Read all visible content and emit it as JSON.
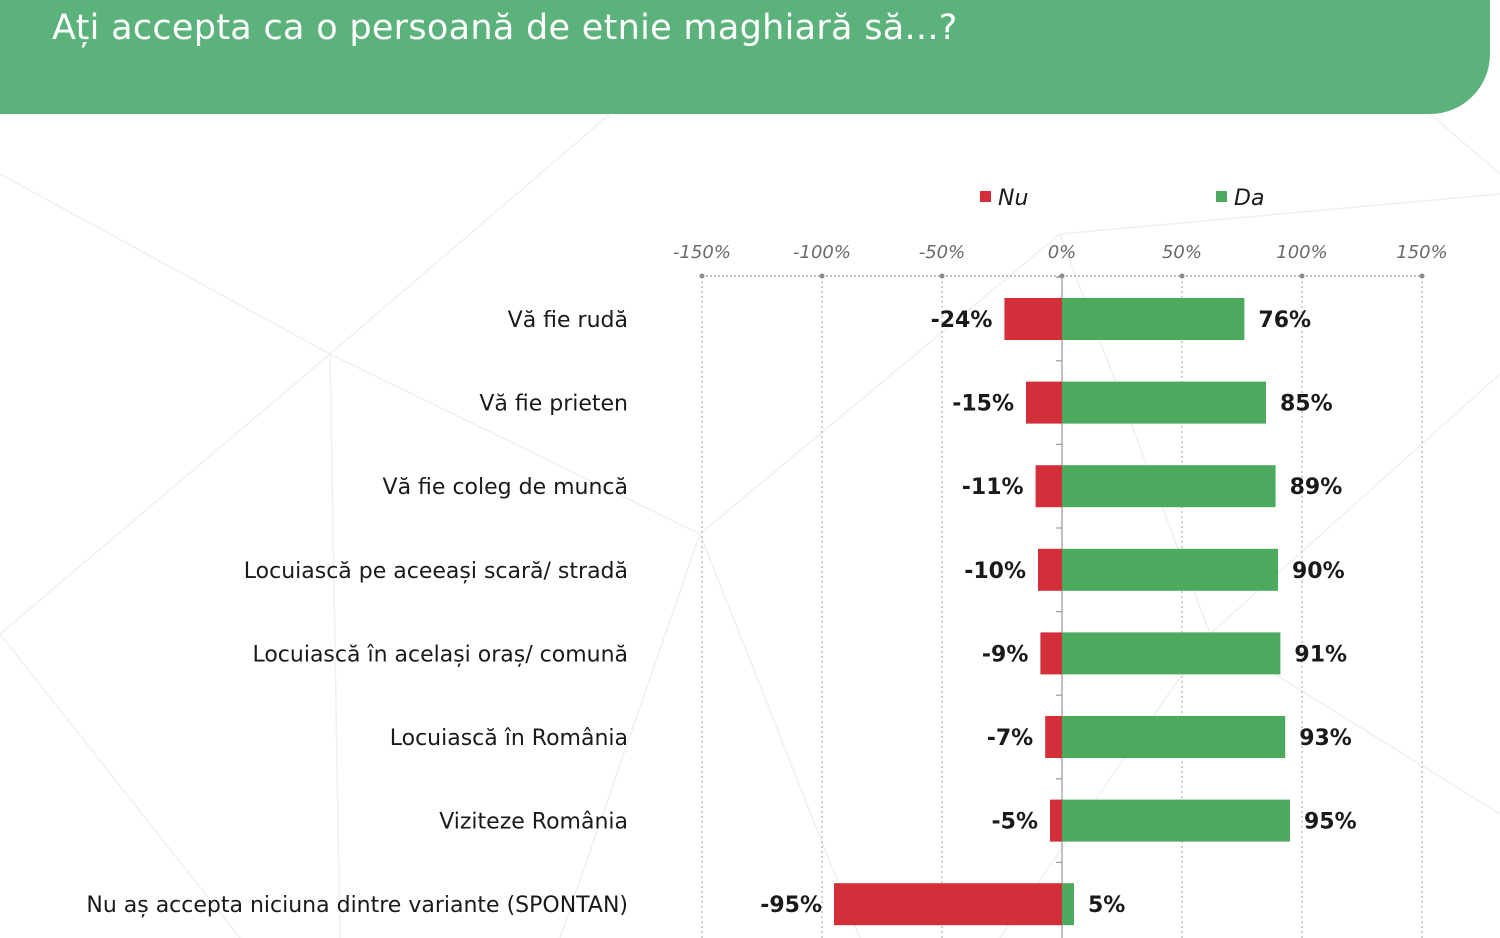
{
  "header": {
    "title": "Ați accepta ca o persoană de etnie maghiară să...?"
  },
  "colors": {
    "header_bg": "#5bb37b",
    "nu": "#d32f3a",
    "da": "#4caa5e"
  },
  "chart_data": {
    "type": "bar",
    "orientation": "horizontal",
    "stacked": "diverging",
    "categories": [
      "Vă fie rudă",
      "Vă fie prieten",
      "Vă fie coleg de muncă",
      "Locuiască pe aceeași scară/ stradă",
      "Locuiască în același oraș/ comună",
      "Locuiască în România",
      "Viziteze România",
      "Nu aș accepta niciuna dintre variante (SPONTAN)"
    ],
    "series": [
      {
        "name": "Nu",
        "values": [
          -24,
          -15,
          -11,
          -10,
          -9,
          -7,
          -5,
          -95
        ],
        "labels": [
          "-24%",
          "-15%",
          "-11%",
          "-10%",
          "-9%",
          "-7%",
          "-5%",
          "-95%"
        ]
      },
      {
        "name": "Da",
        "values": [
          76,
          85,
          89,
          90,
          91,
          93,
          95,
          5
        ],
        "labels": [
          "76%",
          "85%",
          "89%",
          "90%",
          "91%",
          "93%",
          "95%",
          "5%"
        ]
      }
    ],
    "xlim": [
      -150,
      150
    ],
    "xticks": [
      -150,
      -100,
      -50,
      0,
      50,
      100,
      150
    ],
    "xtick_labels": [
      "-150%",
      "-100%",
      "-50%",
      "0%",
      "50%",
      "100%",
      "150%"
    ],
    "grid": true,
    "legend": "top"
  }
}
